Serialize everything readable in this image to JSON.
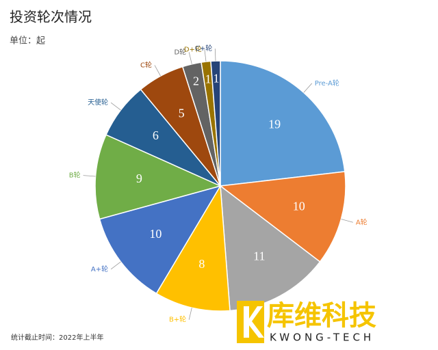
{
  "chart_data": {
    "type": "pie",
    "title": "投资轮次情况",
    "subtitle": "单位：起",
    "categories": [
      "Pre-A轮",
      "A轮",
      null,
      "B+轮",
      "A+轮",
      "B轮",
      "天使轮",
      "C轮",
      "D轮",
      "D+轮",
      "C+轮"
    ],
    "values": [
      19,
      10,
      11,
      8,
      10,
      9,
      6,
      5,
      2,
      1,
      1
    ],
    "colors": [
      "#5b9bd5",
      "#ed7d31",
      "#a5a5a5",
      "#ffc000",
      "#4472c4",
      "#70ad47",
      "#255e91",
      "#9e480e",
      "#636363",
      "#997300",
      "#264478"
    ],
    "note": "统计截止时间：2022年上半年"
  },
  "watermark": {
    "name": "库维科技",
    "sub": "KWONG-TECH"
  }
}
